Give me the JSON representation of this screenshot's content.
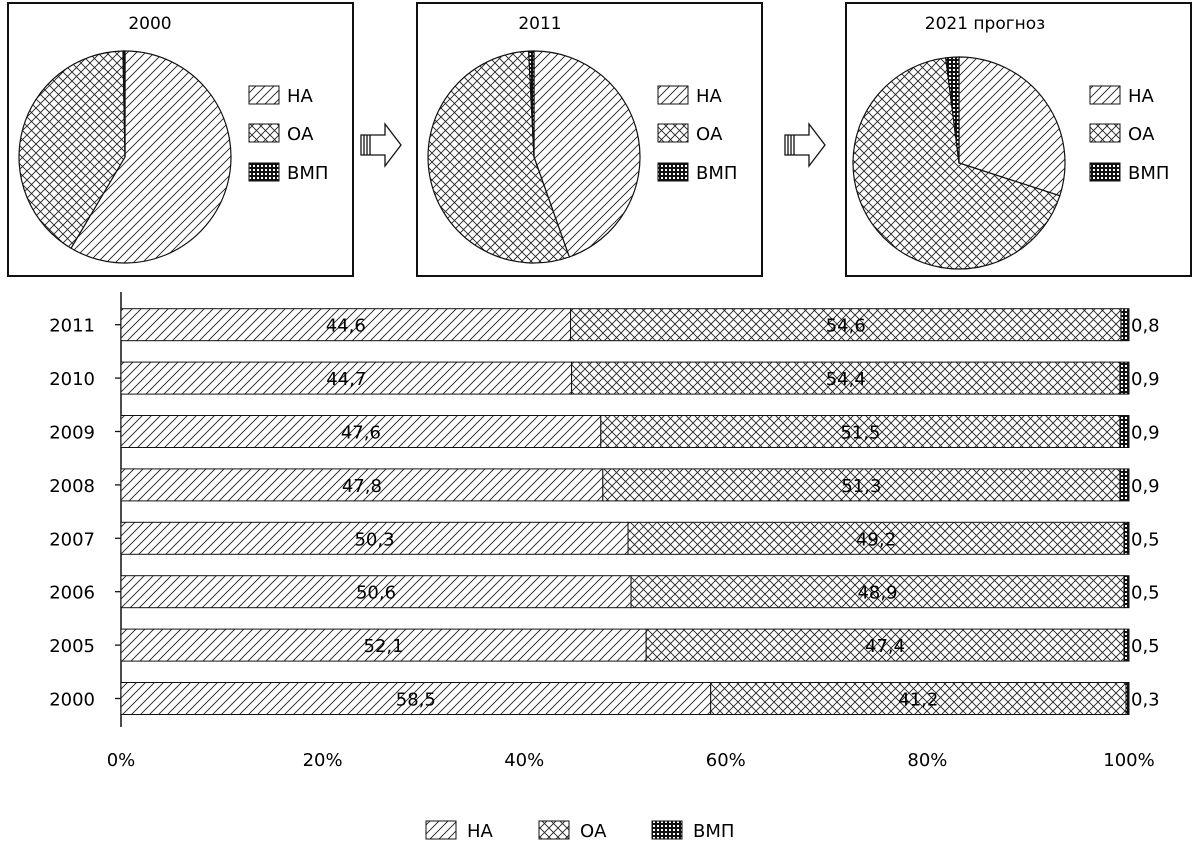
{
  "chart_data": [
    {
      "type": "pie",
      "title": "2000",
      "slices": [
        {
          "name": "НА",
          "value": 58.5
        },
        {
          "name": "ОА",
          "value": 41.2
        },
        {
          "name": "ВМП",
          "value": 0.3
        }
      ]
    },
    {
      "type": "pie",
      "title": "2011",
      "slices": [
        {
          "name": "НА",
          "value": 44.6
        },
        {
          "name": "ОА",
          "value": 54.6
        },
        {
          "name": "ВМП",
          "value": 0.8
        }
      ]
    },
    {
      "type": "pie",
      "title": "2021 прогноз",
      "slices": [
        {
          "name": "НА",
          "value": 30
        },
        {
          "name": "ОА",
          "value": 68
        },
        {
          "name": "ВМП",
          "value": 2
        }
      ]
    },
    {
      "type": "bar",
      "orientation": "horizontal",
      "stacked": true,
      "categories": [
        "2011",
        "2010",
        "2009",
        "2008",
        "2007",
        "2006",
        "2005",
        "2000"
      ],
      "series": [
        {
          "name": "НА",
          "values": [
            44.6,
            44.7,
            47.6,
            47.8,
            50.3,
            50.6,
            52.1,
            58.5
          ],
          "labels": [
            "44,6",
            "44,7",
            "47,6",
            "47,8",
            "50,3",
            "50,6",
            "52,1",
            "58,5"
          ]
        },
        {
          "name": "ОА",
          "values": [
            54.6,
            54.4,
            51.5,
            51.3,
            49.2,
            48.9,
            47.4,
            41.2
          ],
          "labels": [
            "54,6",
            "54,4",
            "51,5",
            "51,3",
            "49,2",
            "48,9",
            "47,4",
            "41,2"
          ]
        },
        {
          "name": "ВМП",
          "values": [
            0.8,
            0.9,
            0.9,
            0.9,
            0.5,
            0.5,
            0.5,
            0.3
          ],
          "labels": [
            "0,8",
            "0,9",
            "0,9",
            "0,9",
            "0,5",
            "0,5",
            "0,5",
            "0,3"
          ]
        }
      ],
      "xlim": [
        0,
        100
      ],
      "xticks": [
        "0%",
        "20%",
        "40%",
        "60%",
        "80%",
        "100%"
      ],
      "grid": false,
      "legend_position": "bottom"
    }
  ],
  "legend": {
    "items": [
      "НА",
      "ОА",
      "ВМП"
    ]
  },
  "colors": {
    "ink": "#111111",
    "background": "#ffffff"
  }
}
